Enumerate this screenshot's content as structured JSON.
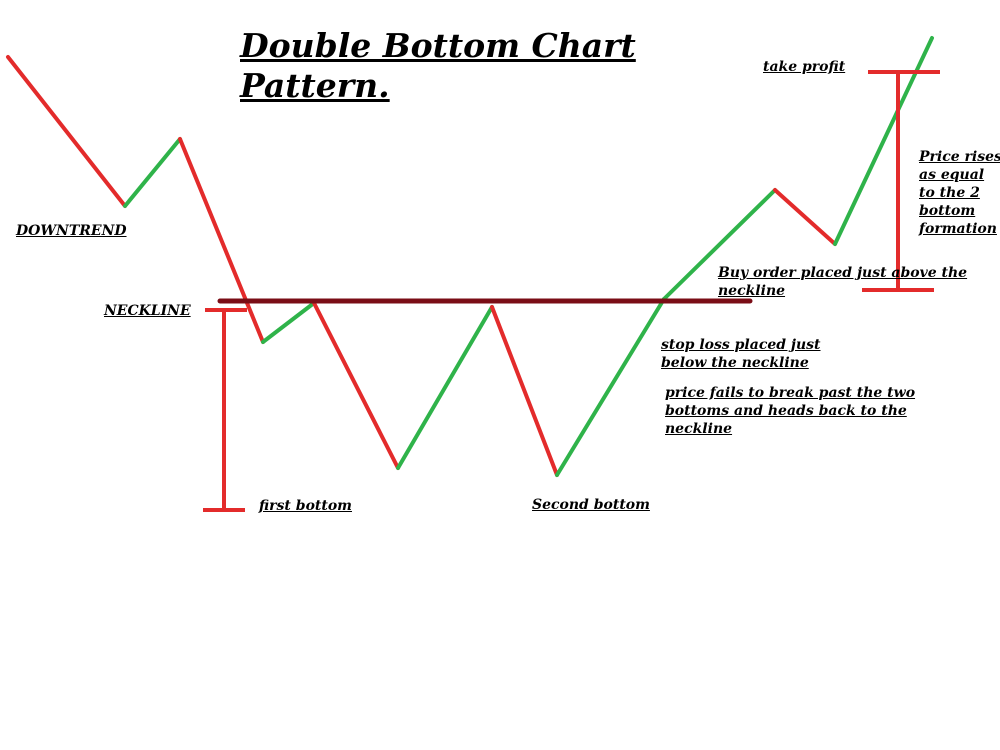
{
  "title_lines": [
    "Double Bottom Chart",
    "Pattern."
  ],
  "labels": {
    "downtrend": "DOWNTREND",
    "neckline": "NECKLINE",
    "first_bottom": "first bottom",
    "second_bottom": "Second bottom",
    "take_profit": "take profit",
    "price_rises": [
      "Price rises",
      "as equal",
      "to the 2",
      "bottom",
      "formation"
    ],
    "buy_order": [
      "Buy order placed just above the",
      "neckline"
    ],
    "stop_loss": [
      "stop loss placed just",
      "below the neckline"
    ],
    "price_fails": [
      "price fails to break past the two",
      "bottoms and heads back to the",
      "neckline"
    ]
  },
  "colors": {
    "down_segment": "#e32b2b",
    "up_segment": "#2fb34a",
    "neckline": "#7a0d16",
    "bracket": "#e32b2b",
    "text": "#000000"
  }
}
